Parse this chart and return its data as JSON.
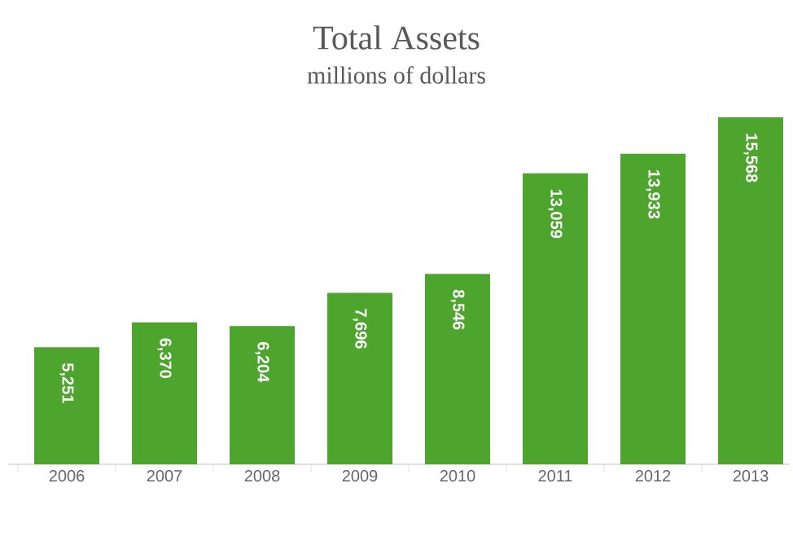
{
  "chart_data": {
    "type": "bar",
    "title": "Total Assets",
    "subtitle": "millions of dollars",
    "categories": [
      "2006",
      "2007",
      "2008",
      "2009",
      "2010",
      "2011",
      "2012",
      "2013"
    ],
    "values": [
      5251,
      6370,
      6204,
      7696,
      8546,
      13059,
      13933,
      15568
    ],
    "value_labels": [
      "5,251",
      "6,370",
      "6,204",
      "7,696",
      "8,546",
      "13,059",
      "13,933",
      "15,568"
    ],
    "color": "#4ea52e",
    "grid": false
  }
}
